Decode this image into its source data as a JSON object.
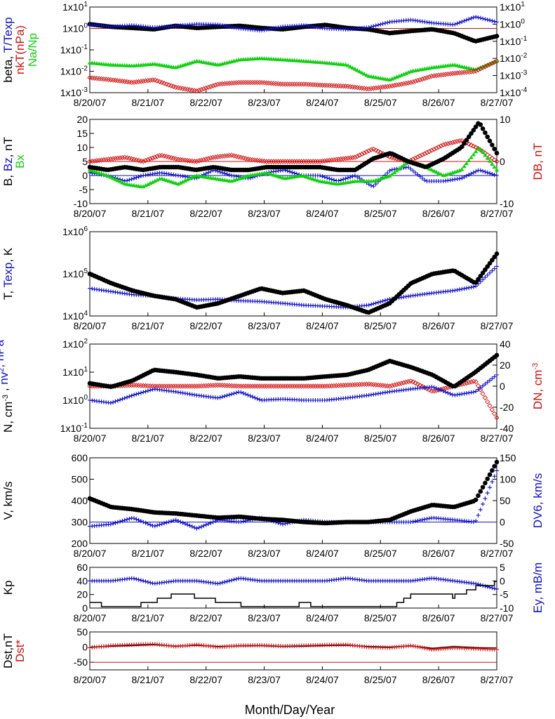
{
  "xlabel": "Month/Day/Year",
  "dates": [
    "8/20/07",
    "8/21/07",
    "8/22/07",
    "8/23/07",
    "8/24/07",
    "8/25/07",
    "8/26/07",
    "8/27/07"
  ],
  "colors": {
    "black": "#000000",
    "blue": "#1010c8",
    "red": "#d01010",
    "green": "#10d010"
  },
  "chart_data": [
    {
      "type": "scatter",
      "panel": "beta",
      "ylabel_parts": [
        {
          "text": "beta, ",
          "color": "black",
          "col": 0
        },
        {
          "text": "T/Texp",
          "color": "blue",
          "col": 0
        },
        {
          "text": "nkT(nPa)",
          "color": "red",
          "col": 1
        },
        {
          "text": "Na/Np",
          "color": "green",
          "col": 2
        }
      ],
      "ylog": true,
      "ylim": [
        0.001,
        10
      ],
      "yticks": [
        {
          "base": "1x10",
          "exp": "-3"
        },
        {
          "base": "1x10",
          "exp": "-2"
        },
        {
          "base": "1x10",
          "exp": "-1"
        },
        {
          "base": "1x10",
          "exp": "0"
        },
        {
          "base": "1x10",
          "exp": "1"
        }
      ],
      "y2log": true,
      "y2lim": [
        0.0001,
        10
      ],
      "y2ticks": [
        {
          "base": "1x10",
          "exp": "-4"
        },
        {
          "base": "1x10",
          "exp": "-3"
        },
        {
          "base": "1x10",
          "exp": "-2"
        },
        {
          "base": "1x10",
          "exp": "-1"
        },
        {
          "base": "1x10",
          "exp": "0"
        },
        {
          "base": "1x10",
          "exp": "1"
        }
      ],
      "hlines": [
        {
          "y": 1,
          "color": "red"
        }
      ],
      "series": [
        {
          "color": "black",
          "marker": "dot",
          "axis": "y2",
          "step": 0.04,
          "values": [
            1.0,
            0.7,
            0.6,
            0.5,
            0.8,
            0.6,
            0.7,
            0.8,
            0.6,
            0.5,
            0.7,
            0.9,
            0.6,
            0.5,
            0.3,
            0.4,
            0.5,
            0.3,
            0.1,
            0.2
          ]
        },
        {
          "color": "blue",
          "marker": "plus",
          "axis": "y1",
          "step": 0.04,
          "values": [
            1.5,
            1.2,
            1.4,
            1.1,
            1.3,
            1.6,
            1.5,
            1.0,
            0.8,
            1.2,
            1.4,
            1.0,
            0.9,
            1.1,
            2.0,
            2.5,
            1.8,
            1.5,
            3.5,
            2.0
          ]
        },
        {
          "color": "green",
          "marker": "triangle",
          "axis": "y1",
          "step": 0.04,
          "values": [
            0.025,
            0.02,
            0.018,
            0.022,
            0.015,
            0.03,
            0.02,
            0.035,
            0.04,
            0.035,
            0.03,
            0.025,
            0.02,
            0.006,
            0.004,
            0.01,
            0.015,
            0.02,
            0.012,
            0.03
          ]
        },
        {
          "color": "red",
          "marker": "diamond",
          "axis": "y1",
          "step": 0.04,
          "values": [
            0.005,
            0.004,
            0.003,
            0.004,
            0.0018,
            0.0012,
            0.0025,
            0.003,
            0.003,
            0.0025,
            0.0025,
            0.0022,
            0.002,
            0.0015,
            0.002,
            0.003,
            0.006,
            0.008,
            0.01,
            0.03
          ]
        }
      ]
    },
    {
      "type": "scatter",
      "panel": "B",
      "ylabel_parts": [
        {
          "text": "B, ",
          "color": "black",
          "col": 0
        },
        {
          "text": "Bz",
          "color": "blue",
          "col": 0
        },
        {
          "text": ", nT",
          "color": "black",
          "col": 0
        },
        {
          "text": "Bx",
          "color": "green",
          "col": 1
        }
      ],
      "y2label_parts": [
        {
          "text": "DB, nT",
          "color": "red"
        }
      ],
      "ylim": [
        -10,
        20
      ],
      "yticks": [
        "-10",
        "-5",
        "0",
        "5",
        "10",
        "15",
        "20"
      ],
      "y2lim": [
        -10,
        10
      ],
      "y2ticks": [
        "-10",
        "0",
        "10"
      ],
      "hlines": [
        {
          "y": 0,
          "color": "blue"
        },
        {
          "y": 5,
          "color": "red"
        }
      ],
      "series": [
        {
          "color": "red",
          "marker": "diamond",
          "axis": "y2",
          "step": 0.04,
          "values": [
            0,
            0.5,
            1,
            0,
            1.5,
            0.5,
            0,
            1,
            1.5,
            0.5,
            0,
            0,
            0,
            0,
            0.5,
            1,
            3,
            1,
            0,
            2,
            4,
            5,
            3,
            0
          ]
        },
        {
          "color": "blue",
          "marker": "plus",
          "axis": "y1",
          "step": 0.04,
          "values": [
            1,
            0,
            -2,
            0,
            1,
            0,
            -1,
            2,
            0,
            -1,
            1,
            2,
            0,
            0,
            -2,
            0,
            -4,
            2,
            3,
            -2,
            -2,
            -1,
            2,
            0
          ]
        },
        {
          "color": "green",
          "marker": "triangle",
          "axis": "y1",
          "step": 0.04,
          "values": [
            2,
            0,
            -3,
            -4,
            -1,
            -3,
            0,
            -1,
            -2,
            0,
            1,
            -1,
            0,
            -2,
            -3,
            -2,
            -2,
            0,
            5,
            3,
            0,
            2,
            10,
            2
          ]
        },
        {
          "color": "black",
          "marker": "dot",
          "axis": "y1",
          "step": 0.04,
          "values": [
            3,
            2,
            3,
            2,
            3,
            3,
            2,
            3,
            2,
            2,
            3,
            3,
            3,
            3,
            2,
            2,
            6,
            8,
            5,
            3,
            6,
            10,
            19,
            8
          ]
        }
      ]
    },
    {
      "type": "scatter",
      "panel": "T",
      "ylabel_parts": [
        {
          "text": "T, ",
          "color": "black",
          "col": 0
        },
        {
          "text": "Texp",
          "color": "blue",
          "col": 0
        },
        {
          "text": ", K",
          "color": "black",
          "col": 0
        }
      ],
      "ylog": true,
      "ylim": [
        10000,
        1000000
      ],
      "yticks": [
        {
          "base": "1x10",
          "exp": "4"
        },
        {
          "base": "1x10",
          "exp": "5"
        },
        {
          "base": "1x10",
          "exp": "6"
        }
      ],
      "hlines": [],
      "series": [
        {
          "color": "blue",
          "marker": "plus",
          "axis": "y1",
          "step": 0.04,
          "values": [
            45000,
            38000,
            32000,
            30000,
            26000,
            24000,
            25000,
            23000,
            22000,
            20000,
            18000,
            17000,
            16000,
            18000,
            25000,
            30000,
            35000,
            40000,
            50000,
            150000
          ]
        },
        {
          "color": "black",
          "marker": "dot",
          "axis": "y1",
          "step": 0.04,
          "values": [
            100000,
            60000,
            40000,
            30000,
            25000,
            16000,
            20000,
            30000,
            45000,
            35000,
            40000,
            25000,
            18000,
            12000,
            20000,
            60000,
            100000,
            120000,
            60000,
            300000
          ]
        }
      ]
    },
    {
      "type": "scatter",
      "panel": "N",
      "ylabel_parts": [
        {
          "text": "N, cm",
          "color": "black",
          "col": 0,
          "sup": "-3"
        },
        {
          "text": " , ",
          "color": "black",
          "col": 0
        },
        {
          "text": "nv",
          "color": "blue",
          "col": 0,
          "sup": "2"
        },
        {
          "text": ", nPa",
          "color": "blue",
          "col": 0
        }
      ],
      "y2label_parts": [
        {
          "text": "DN, cm",
          "color": "red",
          "sup": "-3"
        }
      ],
      "ylog": true,
      "ylim": [
        0.1,
        100
      ],
      "yticks": [
        {
          "base": "1x10",
          "exp": "-1"
        },
        {
          "base": "1x10",
          "exp": "0"
        },
        {
          "base": "1x10",
          "exp": "1"
        },
        {
          "base": "1x10",
          "exp": "2"
        }
      ],
      "y2lim": [
        -40,
        40
      ],
      "y2ticks": [
        "-40",
        "-20",
        "0",
        "20",
        "40"
      ],
      "hlines": [],
      "series": [
        {
          "color": "red",
          "marker": "diamond",
          "axis": "y2",
          "step": 0.04,
          "values": [
            0,
            0,
            1,
            0,
            0,
            0,
            1,
            0,
            0,
            0,
            0,
            0,
            1,
            2,
            0,
            5,
            -5,
            0,
            5,
            -30
          ]
        },
        {
          "color": "blue",
          "marker": "plus",
          "axis": "y1",
          "step": 0.04,
          "values": [
            1.0,
            0.8,
            1.5,
            2.5,
            2.0,
            1.5,
            1.2,
            2.0,
            1.0,
            1.1,
            1.0,
            1.0,
            1.2,
            1.5,
            2.0,
            2.5,
            3.0,
            1.5,
            2.0,
            8.0
          ]
        },
        {
          "color": "black",
          "marker": "dot",
          "axis": "y1",
          "step": 0.04,
          "values": [
            4,
            3,
            5,
            12,
            10,
            8,
            6,
            7,
            6,
            6,
            6,
            7,
            8,
            12,
            25,
            15,
            8,
            3,
            10,
            40
          ]
        }
      ]
    },
    {
      "type": "scatter",
      "panel": "V",
      "ylabel_parts": [
        {
          "text": "V, km/s",
          "color": "black",
          "col": 0
        }
      ],
      "y2label_parts": [
        {
          "text": "DV6, km/s",
          "color": "blue"
        }
      ],
      "ylim": [
        200,
        600
      ],
      "yticks": [
        "200",
        "300",
        "400",
        "500",
        "600"
      ],
      "y2lim": [
        -50,
        150
      ],
      "y2ticks": [
        "-50",
        "0",
        "50",
        "100",
        "150"
      ],
      "hlines": [
        {
          "y": 300,
          "color": "blue"
        }
      ],
      "series": [
        {
          "color": "blue",
          "marker": "plus",
          "axis": "y2",
          "step": 0.04,
          "values": [
            -10,
            -5,
            10,
            -10,
            5,
            -15,
            5,
            0,
            10,
            -5,
            5,
            0,
            0,
            0,
            0,
            0,
            10,
            5,
            0,
            120
          ]
        },
        {
          "color": "black",
          "marker": "dot",
          "axis": "y1",
          "step": 0.04,
          "values": [
            410,
            370,
            360,
            345,
            340,
            330,
            320,
            325,
            315,
            310,
            300,
            295,
            300,
            300,
            310,
            350,
            380,
            370,
            400,
            580
          ]
        }
      ]
    },
    {
      "type": "line",
      "panel": "Kp",
      "ylabel_parts": [
        {
          "text": "Kp",
          "color": "black",
          "col": 0
        }
      ],
      "y2label_parts": [
        {
          "text": "Ey, mB/m",
          "color": "blue"
        }
      ],
      "ylim": [
        0,
        60
      ],
      "yticks": [
        "0",
        "20",
        "40",
        "60"
      ],
      "y2lim": [
        -10,
        5
      ],
      "y2ticks": [
        "-10",
        "-5",
        "0",
        "5"
      ],
      "hlines": [],
      "series": [
        {
          "color": "blue",
          "marker": "plus",
          "axis": "y2",
          "step": 0.04,
          "values": [
            0,
            0,
            1,
            -1,
            0,
            0,
            -1,
            1,
            0,
            0,
            0,
            0,
            1,
            0,
            0,
            0,
            1,
            0,
            -1,
            -3
          ]
        },
        {
          "color": "black",
          "marker": "step",
          "axis": "y1",
          "step": 0.04,
          "values": [
            7,
            3,
            3,
            10,
            20,
            17,
            10,
            5,
            3,
            0,
            7,
            0,
            0,
            3,
            0,
            20,
            23,
            17,
            30,
            37
          ]
        }
      ]
    },
    {
      "type": "line",
      "panel": "Dst",
      "ylabel_parts": [
        {
          "text": "Dst,nT",
          "color": "black",
          "col": 0
        },
        {
          "text": "Dst*",
          "color": "red",
          "col": 1
        }
      ],
      "ylim": [
        -75,
        50
      ],
      "yticks": [
        "-50",
        "0",
        "50"
      ],
      "hlines": [
        {
          "y": -50,
          "color": "red"
        }
      ],
      "series": [
        {
          "color": "black",
          "marker": "line",
          "axis": "y1",
          "step": 0.04,
          "values": [
            0,
            3,
            5,
            8,
            3,
            6,
            2,
            4,
            5,
            2,
            3,
            5,
            6,
            2,
            0,
            4,
            -4,
            2,
            -2,
            -3
          ]
        },
        {
          "color": "red",
          "marker": "plus",
          "axis": "y1",
          "step": 0.04,
          "values": [
            -2,
            5,
            8,
            10,
            2,
            8,
            0,
            5,
            6,
            3,
            5,
            7,
            8,
            0,
            -2,
            5,
            -8,
            -2,
            -5,
            -8
          ]
        }
      ]
    }
  ]
}
